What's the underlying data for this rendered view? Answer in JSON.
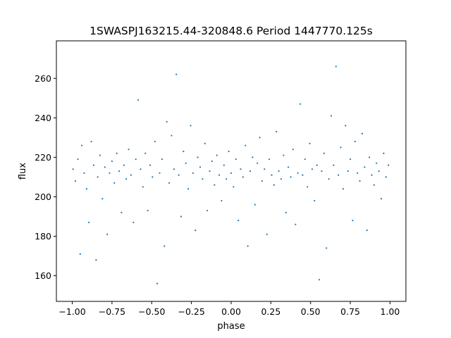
{
  "chart_data": {
    "type": "scatter",
    "title": "1SWASPJ163215.44-320848.6 Period 1447770.125s",
    "xlabel": "phase",
    "ylabel": "flux",
    "xlim": [
      -1.1,
      1.1
    ],
    "ylim": [
      147,
      279
    ],
    "xticks": [
      -1.0,
      -0.75,
      -0.5,
      -0.25,
      0.0,
      0.25,
      0.5,
      0.75,
      1.0
    ],
    "xtick_labels": [
      "−1.00",
      "−0.75",
      "−0.50",
      "−0.25",
      "0.00",
      "0.25",
      "0.50",
      "0.75",
      "1.00"
    ],
    "yticks": [
      160,
      180,
      200,
      220,
      240,
      260
    ],
    "ytick_labels": [
      "160",
      "180",
      "200",
      "220",
      "240",
      "260"
    ],
    "grid": false,
    "point_color": "#1f77b4",
    "series": [
      {
        "points": [
          [
            -0.995,
            214
          ],
          [
            -0.98,
            208
          ],
          [
            -0.965,
            219
          ],
          [
            -0.95,
            171
          ],
          [
            -0.94,
            226
          ],
          [
            -0.925,
            212
          ],
          [
            -0.91,
            204
          ],
          [
            -0.895,
            187
          ],
          [
            -0.88,
            228
          ],
          [
            -0.865,
            216
          ],
          [
            -0.85,
            168
          ],
          [
            -0.84,
            210
          ],
          [
            -0.825,
            221
          ],
          [
            -0.81,
            199
          ],
          [
            -0.795,
            215
          ],
          [
            -0.78,
            181
          ],
          [
            -0.765,
            212
          ],
          [
            -0.75,
            218
          ],
          [
            -0.735,
            207
          ],
          [
            -0.72,
            222
          ],
          [
            -0.705,
            213
          ],
          [
            -0.69,
            192
          ],
          [
            -0.675,
            216
          ],
          [
            -0.66,
            209
          ],
          [
            -0.645,
            224
          ],
          [
            -0.63,
            211
          ],
          [
            -0.615,
            187
          ],
          [
            -0.6,
            219
          ],
          [
            -0.585,
            249
          ],
          [
            -0.57,
            214
          ],
          [
            -0.555,
            205
          ],
          [
            -0.54,
            222
          ],
          [
            -0.525,
            193
          ],
          [
            -0.51,
            216
          ],
          [
            -0.495,
            210
          ],
          [
            -0.48,
            228
          ],
          [
            -0.465,
            156
          ],
          [
            -0.45,
            212
          ],
          [
            -0.435,
            219
          ],
          [
            -0.42,
            175
          ],
          [
            -0.405,
            238
          ],
          [
            -0.39,
            207
          ],
          [
            -0.375,
            231
          ],
          [
            -0.36,
            214
          ],
          [
            -0.345,
            262
          ],
          [
            -0.33,
            211
          ],
          [
            -0.315,
            190
          ],
          [
            -0.3,
            223
          ],
          [
            -0.285,
            217
          ],
          [
            -0.27,
            204
          ],
          [
            -0.255,
            236
          ],
          [
            -0.24,
            212
          ],
          [
            -0.225,
            183
          ],
          [
            -0.21,
            220
          ],
          [
            -0.195,
            215
          ],
          [
            -0.18,
            209
          ],
          [
            -0.165,
            227
          ],
          [
            -0.15,
            193
          ],
          [
            -0.135,
            213
          ],
          [
            -0.12,
            218
          ],
          [
            -0.105,
            206
          ],
          [
            -0.09,
            221
          ],
          [
            -0.075,
            211
          ],
          [
            -0.06,
            198
          ],
          [
            -0.045,
            216
          ],
          [
            -0.03,
            209
          ],
          [
            -0.015,
            223
          ],
          [
            0.0,
            212
          ],
          [
            0.015,
            205
          ],
          [
            0.03,
            219
          ],
          [
            0.045,
            188
          ],
          [
            0.06,
            214
          ],
          [
            0.075,
            210
          ],
          [
            0.09,
            226
          ],
          [
            0.105,
            175
          ],
          [
            0.12,
            213
          ],
          [
            0.135,
            220
          ],
          [
            0.15,
            196
          ],
          [
            0.165,
            217
          ],
          [
            0.18,
            230
          ],
          [
            0.195,
            208
          ],
          [
            0.21,
            214
          ],
          [
            0.225,
            181
          ],
          [
            0.24,
            219
          ],
          [
            0.255,
            211
          ],
          [
            0.27,
            206
          ],
          [
            0.285,
            233
          ],
          [
            0.3,
            213
          ],
          [
            0.315,
            209
          ],
          [
            0.33,
            221
          ],
          [
            0.345,
            192
          ],
          [
            0.36,
            215
          ],
          [
            0.375,
            210
          ],
          [
            0.39,
            224
          ],
          [
            0.405,
            186
          ],
          [
            0.42,
            212
          ],
          [
            0.435,
            247
          ],
          [
            0.45,
            211
          ],
          [
            0.465,
            219
          ],
          [
            0.48,
            205
          ],
          [
            0.495,
            227
          ],
          [
            0.51,
            214
          ],
          [
            0.525,
            198
          ],
          [
            0.54,
            216
          ],
          [
            0.555,
            158
          ],
          [
            0.57,
            213
          ],
          [
            0.585,
            222
          ],
          [
            0.6,
            174
          ],
          [
            0.615,
            209
          ],
          [
            0.63,
            241
          ],
          [
            0.645,
            216
          ],
          [
            0.66,
            266
          ],
          [
            0.675,
            211
          ],
          [
            0.69,
            225
          ],
          [
            0.705,
            204
          ],
          [
            0.72,
            236
          ],
          [
            0.735,
            213
          ],
          [
            0.75,
            219
          ],
          [
            0.765,
            188
          ],
          [
            0.78,
            228
          ],
          [
            0.795,
            212
          ],
          [
            0.81,
            208
          ],
          [
            0.825,
            232
          ],
          [
            0.84,
            215
          ],
          [
            0.855,
            183
          ],
          [
            0.87,
            220
          ],
          [
            0.885,
            211
          ],
          [
            0.9,
            206
          ],
          [
            0.915,
            217
          ],
          [
            0.93,
            213
          ],
          [
            0.945,
            199
          ],
          [
            0.96,
            222
          ],
          [
            0.975,
            210
          ],
          [
            0.99,
            216
          ]
        ]
      }
    ]
  }
}
